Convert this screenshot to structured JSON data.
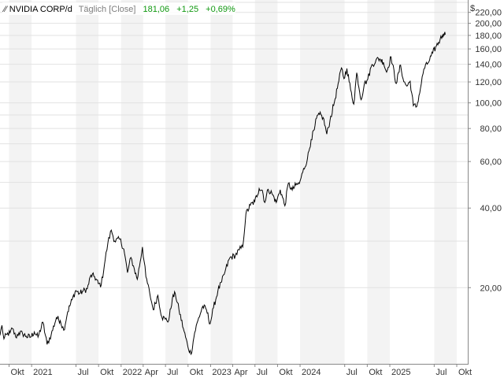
{
  "chart_data": {
    "type": "line",
    "title": "NVIDIA CORP/d",
    "interval_label": "Täglich [Close]",
    "last_value": "181,06",
    "change_abs": "+1,25",
    "change_pct": "+0,69%",
    "currency_label": "$",
    "y_scale": "log",
    "ylim": [
      10.3,
      245
    ],
    "y_ticks": [
      {
        "value": 220,
        "label": "220,00"
      },
      {
        "value": 200,
        "label": "200,00"
      },
      {
        "value": 180,
        "label": "180,00"
      },
      {
        "value": 160,
        "label": "160,00"
      },
      {
        "value": 140,
        "label": "140,00"
      },
      {
        "value": 120,
        "label": "120,00"
      },
      {
        "value": 100,
        "label": "100,00"
      },
      {
        "value": 80,
        "label": "80,00"
      },
      {
        "value": 60,
        "label": "60,00"
      },
      {
        "value": 40,
        "label": "40,00"
      },
      {
        "value": 20,
        "label": "20,00"
      }
    ],
    "xlim": [
      "2020-08-25",
      "2025-11-15"
    ],
    "x_ticks": [
      {
        "date": "2020-10-01",
        "label": "Okt"
      },
      {
        "date": "2021-01-01",
        "label": "2021"
      },
      {
        "date": "2021-07-01",
        "label": "Jul"
      },
      {
        "date": "2021-10-01",
        "label": "Okt"
      },
      {
        "date": "2022-01-01",
        "label": "2022"
      },
      {
        "date": "2022-04-01",
        "label": "Apr"
      },
      {
        "date": "2022-07-01",
        "label": "Jul"
      },
      {
        "date": "2022-10-01",
        "label": "Okt"
      },
      {
        "date": "2023-01-01",
        "label": "2023"
      },
      {
        "date": "2023-04-01",
        "label": "Apr"
      },
      {
        "date": "2023-07-01",
        "label": "Jul"
      },
      {
        "date": "2023-10-01",
        "label": "Okt"
      },
      {
        "date": "2024-01-01",
        "label": "2024"
      },
      {
        "date": "2024-07-01",
        "label": "Jul"
      },
      {
        "date": "2024-10-01",
        "label": "Okt"
      },
      {
        "date": "2025-01-01",
        "label": "2025"
      },
      {
        "date": "2025-07-01",
        "label": "Jul"
      },
      {
        "date": "2025-10-01",
        "label": "Okt"
      }
    ],
    "grid": true,
    "series": [
      {
        "values": [
          [
            "2020-08-25",
            13.2
          ],
          [
            "2020-09-02",
            14.4
          ],
          [
            "2020-09-10",
            12.8
          ],
          [
            "2020-09-22",
            13.3
          ],
          [
            "2020-10-05",
            13.5
          ],
          [
            "2020-10-15",
            14.0
          ],
          [
            "2020-10-28",
            13.0
          ],
          [
            "2020-11-10",
            13.5
          ],
          [
            "2020-11-25",
            13.4
          ],
          [
            "2020-12-10",
            13.1
          ],
          [
            "2020-12-28",
            13.0
          ],
          [
            "2021-01-12",
            13.6
          ],
          [
            "2021-01-27",
            13.0
          ],
          [
            "2021-02-16",
            14.8
          ],
          [
            "2021-03-05",
            12.2
          ],
          [
            "2021-03-22",
            13.3
          ],
          [
            "2021-04-12",
            15.4
          ],
          [
            "2021-04-28",
            15.0
          ],
          [
            "2021-05-12",
            13.8
          ],
          [
            "2021-05-28",
            16.2
          ],
          [
            "2021-06-15",
            18.0
          ],
          [
            "2021-06-30",
            19.5
          ],
          [
            "2021-07-15",
            19.0
          ],
          [
            "2021-07-30",
            19.4
          ],
          [
            "2021-08-16",
            19.8
          ],
          [
            "2021-08-31",
            22.3
          ],
          [
            "2021-09-15",
            22.0
          ],
          [
            "2021-09-30",
            20.7
          ],
          [
            "2021-10-12",
            20.5
          ],
          [
            "2021-10-28",
            25.5
          ],
          [
            "2021-11-08",
            29.5
          ],
          [
            "2021-11-22",
            33.0
          ],
          [
            "2021-12-06",
            30.0
          ],
          [
            "2021-12-27",
            30.5
          ],
          [
            "2022-01-12",
            28.0
          ],
          [
            "2022-01-27",
            22.8
          ],
          [
            "2022-02-10",
            26.0
          ],
          [
            "2022-02-24",
            23.5
          ],
          [
            "2022-03-08",
            21.5
          ],
          [
            "2022-03-29",
            28.5
          ],
          [
            "2022-04-12",
            22.0
          ],
          [
            "2022-04-28",
            19.0
          ],
          [
            "2022-05-12",
            16.5
          ],
          [
            "2022-05-31",
            18.7
          ],
          [
            "2022-06-16",
            15.5
          ],
          [
            "2022-06-30",
            15.2
          ],
          [
            "2022-07-14",
            15.0
          ],
          [
            "2022-07-29",
            18.2
          ],
          [
            "2022-08-10",
            19.0
          ],
          [
            "2022-08-25",
            16.5
          ],
          [
            "2022-09-12",
            14.0
          ],
          [
            "2022-09-30",
            12.0
          ],
          [
            "2022-10-13",
            11.2
          ],
          [
            "2022-10-28",
            13.5
          ],
          [
            "2022-11-10",
            15.0
          ],
          [
            "2022-11-30",
            17.0
          ],
          [
            "2022-12-15",
            16.5
          ],
          [
            "2022-12-30",
            14.6
          ],
          [
            "2023-01-13",
            16.8
          ],
          [
            "2023-01-31",
            19.5
          ],
          [
            "2023-02-15",
            21.0
          ],
          [
            "2023-03-01",
            23.0
          ],
          [
            "2023-03-20",
            25.9
          ],
          [
            "2023-04-12",
            26.5
          ],
          [
            "2023-04-28",
            27.8
          ],
          [
            "2023-05-12",
            28.5
          ],
          [
            "2023-05-25",
            38.0
          ],
          [
            "2023-06-12",
            41.0
          ],
          [
            "2023-06-30",
            42.3
          ],
          [
            "2023-07-18",
            47.4
          ],
          [
            "2023-07-31",
            46.7
          ],
          [
            "2023-08-10",
            42.0
          ],
          [
            "2023-08-24",
            47.1
          ],
          [
            "2023-09-08",
            45.5
          ],
          [
            "2023-09-26",
            42.0
          ],
          [
            "2023-10-12",
            46.9
          ],
          [
            "2023-10-31",
            40.8
          ],
          [
            "2023-11-14",
            49.6
          ],
          [
            "2023-11-30",
            46.8
          ],
          [
            "2023-12-15",
            48.9
          ],
          [
            "2023-12-29",
            49.5
          ],
          [
            "2024-01-12",
            54.7
          ],
          [
            "2024-01-31",
            61.5
          ],
          [
            "2024-02-15",
            72.6
          ],
          [
            "2024-02-28",
            79.1
          ],
          [
            "2024-03-08",
            87.5
          ],
          [
            "2024-03-20",
            90.4
          ],
          [
            "2024-04-04",
            88.0
          ],
          [
            "2024-04-19",
            76.2
          ],
          [
            "2024-05-02",
            85.8
          ],
          [
            "2024-05-23",
            103.8
          ],
          [
            "2024-06-07",
            120.9
          ],
          [
            "2024-06-18",
            135.6
          ],
          [
            "2024-06-28",
            123.5
          ],
          [
            "2024-07-10",
            134.9
          ],
          [
            "2024-07-25",
            112.3
          ],
          [
            "2024-08-07",
            98.9
          ],
          [
            "2024-08-19",
            130.0
          ],
          [
            "2024-09-06",
            102.8
          ],
          [
            "2024-09-19",
            117.9
          ],
          [
            "2024-10-03",
            122.8
          ],
          [
            "2024-10-17",
            136.9
          ],
          [
            "2024-11-06",
            145.6
          ],
          [
            "2024-11-21",
            146.7
          ],
          [
            "2024-12-06",
            142.4
          ],
          [
            "2024-12-19",
            130.7
          ],
          [
            "2025-01-06",
            149.4
          ],
          [
            "2025-01-27",
            118.4
          ],
          [
            "2025-02-14",
            138.9
          ],
          [
            "2025-02-27",
            120.2
          ],
          [
            "2025-03-12",
            115.7
          ],
          [
            "2025-03-25",
            120.7
          ],
          [
            "2025-04-07",
            97.6
          ],
          [
            "2025-04-21",
            96.9
          ],
          [
            "2025-05-06",
            113.5
          ],
          [
            "2025-05-20",
            134.4
          ],
          [
            "2025-06-06",
            141.7
          ],
          [
            "2025-06-25",
            154.3
          ],
          [
            "2025-07-10",
            164.1
          ],
          [
            "2025-07-25",
            173.5
          ],
          [
            "2025-08-04",
            180.0
          ],
          [
            "2025-08-08",
            182.7
          ],
          [
            "2025-08-12",
            183.2
          ],
          [
            "2025-08-15",
            181.06
          ]
        ]
      }
    ]
  }
}
